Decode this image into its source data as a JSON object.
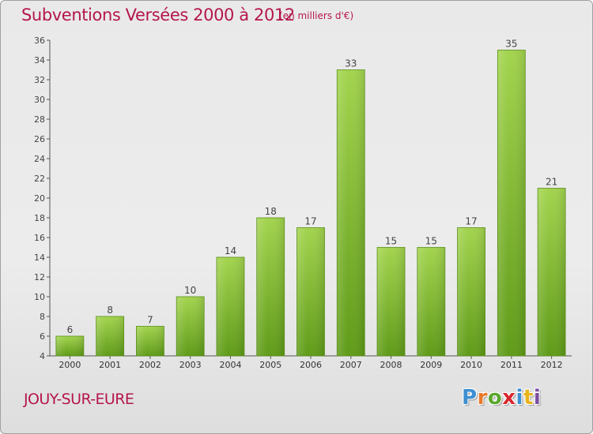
{
  "header": {
    "title": "Subventions Versées 2000 à 2012",
    "subtitle": "(en milliers d'€)"
  },
  "footer": {
    "place": "JOUY-SUR-EURE",
    "logo": {
      "text": "Proxiti",
      "colors": [
        "#3d8fd1",
        "#e8792a",
        "#5aa72e",
        "#d9262e",
        "#3d8fd1",
        "#e8b21a",
        "#7b4fa0"
      ]
    }
  },
  "colors": {
    "accent": "#b5164e",
    "bar_light": "#a3d44e",
    "bar_dark": "#5f9b18"
  },
  "chart_data": {
    "type": "bar",
    "title": "Subventions Versées 2000 à 2012",
    "subtitle": "(en milliers d'€)",
    "categories": [
      "2000",
      "2001",
      "2002",
      "2003",
      "2004",
      "2005",
      "2006",
      "2007",
      "2008",
      "2009",
      "2010",
      "2011",
      "2012"
    ],
    "values": [
      6,
      8,
      7,
      10,
      14,
      18,
      17,
      33,
      15,
      15,
      17,
      35,
      21
    ],
    "data_labels": [
      "6",
      "8",
      "7",
      "10",
      "14",
      "18",
      "17",
      "33",
      "15",
      "15",
      "17",
      "35",
      "21"
    ],
    "ylim": [
      4,
      36
    ],
    "yticks": [
      4,
      6,
      8,
      10,
      12,
      14,
      16,
      18,
      20,
      22,
      24,
      26,
      28,
      30,
      32,
      34,
      36
    ],
    "xlabel": "",
    "ylabel": "",
    "grid": false,
    "legend": "none"
  }
}
